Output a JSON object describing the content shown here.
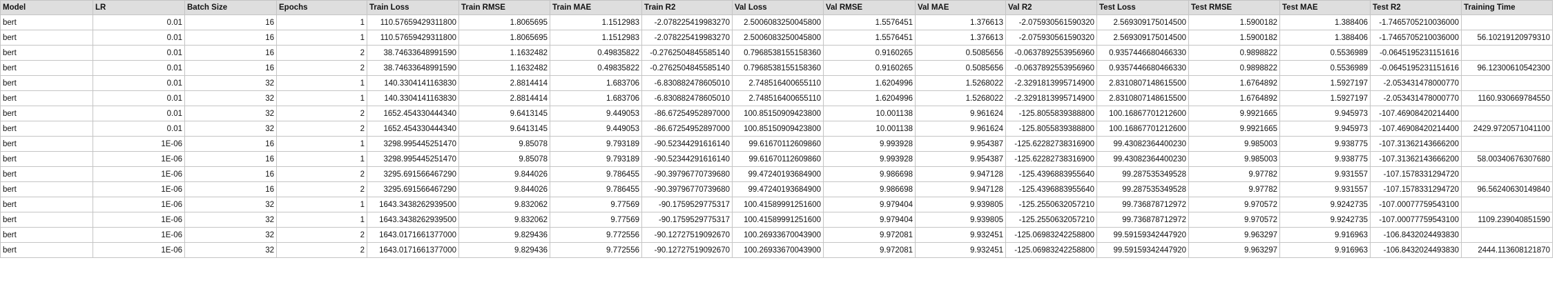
{
  "columns": [
    "Model",
    "LR",
    "Batch Size",
    "Epochs",
    "Train Loss",
    "Train RMSE",
    "Train MAE",
    "Train R2",
    "Val Loss",
    "Val RMSE",
    "Val MAE",
    "Val R2",
    "Test Loss",
    "Test RMSE",
    "Test MAE",
    "Test R2",
    "Training Time"
  ],
  "rows": [
    [
      "bert",
      "0.01",
      "16",
      "1",
      "110.57659429311800",
      "1.8065695",
      "1.1512983",
      "-2.078225419983270",
      "2.5006083250045800",
      "1.5576451",
      "1.376613",
      "-2.075930561590320",
      "2.569309175014500",
      "1.5900182",
      "1.388406",
      "-1.7465705210036000",
      ""
    ],
    [
      "bert",
      "0.01",
      "16",
      "1",
      "110.57659429311800",
      "1.8065695",
      "1.1512983",
      "-2.078225419983270",
      "2.5006083250045800",
      "1.5576451",
      "1.376613",
      "-2.075930561590320",
      "2.569309175014500",
      "1.5900182",
      "1.388406",
      "-1.7465705210036000",
      "56.10219120979310"
    ],
    [
      "bert",
      "0.01",
      "16",
      "2",
      "38.74633648991590",
      "1.1632482",
      "0.49835822",
      "-0.2762504845585140",
      "0.7968538155158360",
      "0.9160265",
      "0.5085656",
      "-0.0637892553956960",
      "0.9357446680466330",
      "0.9898822",
      "0.5536989",
      "-0.0645195231151616",
      ""
    ],
    [
      "bert",
      "0.01",
      "16",
      "2",
      "38.74633648991590",
      "1.1632482",
      "0.49835822",
      "-0.2762504845585140",
      "0.7968538155158360",
      "0.9160265",
      "0.5085656",
      "-0.0637892553956960",
      "0.9357446680466330",
      "0.9898822",
      "0.5536989",
      "-0.0645195231151616",
      "96.12300610542300"
    ],
    [
      "bert",
      "0.01",
      "32",
      "1",
      "140.3304141163830",
      "2.8814414",
      "1.683706",
      "-6.830882478605010",
      "2.748516400655110",
      "1.6204996",
      "1.5268022",
      "-2.3291813995714900",
      "2.8310807148615500",
      "1.6764892",
      "1.5927197",
      "-2.053431478000770",
      ""
    ],
    [
      "bert",
      "0.01",
      "32",
      "1",
      "140.3304141163830",
      "2.8814414",
      "1.683706",
      "-6.830882478605010",
      "2.748516400655110",
      "1.6204996",
      "1.5268022",
      "-2.3291813995714900",
      "2.8310807148615500",
      "1.6764892",
      "1.5927197",
      "-2.053431478000770",
      "1160.930669784550"
    ],
    [
      "bert",
      "0.01",
      "32",
      "2",
      "1652.454330444340",
      "9.6413145",
      "9.449053",
      "-86.67254952897000",
      "100.85150909423800",
      "10.001138",
      "9.961624",
      "-125.8055839388800",
      "100.16867701212600",
      "9.9921665",
      "9.945973",
      "-107.46908420214400",
      ""
    ],
    [
      "bert",
      "0.01",
      "32",
      "2",
      "1652.454330444340",
      "9.6413145",
      "9.449053",
      "-86.67254952897000",
      "100.85150909423800",
      "10.001138",
      "9.961624",
      "-125.8055839388800",
      "100.16867701212600",
      "9.9921665",
      "9.945973",
      "-107.46908420214400",
      "2429.9720571041100"
    ],
    [
      "bert",
      "1E-06",
      "16",
      "1",
      "3298.995445251470",
      "9.85078",
      "9.793189",
      "-90.52344291616140",
      "99.61670112609860",
      "9.993928",
      "9.954387",
      "-125.62282738316900",
      "99.43082364400230",
      "9.985003",
      "9.938775",
      "-107.31362143666200",
      ""
    ],
    [
      "bert",
      "1E-06",
      "16",
      "1",
      "3298.995445251470",
      "9.85078",
      "9.793189",
      "-90.52344291616140",
      "99.61670112609860",
      "9.993928",
      "9.954387",
      "-125.62282738316900",
      "99.43082364400230",
      "9.985003",
      "9.938775",
      "-107.31362143666200",
      "58.00340676307680"
    ],
    [
      "bert",
      "1E-06",
      "16",
      "2",
      "3295.691566467290",
      "9.844026",
      "9.786455",
      "-90.39796770739680",
      "99.47240193684900",
      "9.986698",
      "9.947128",
      "-125.4396883955640",
      "99.287535349528",
      "9.97782",
      "9.931557",
      "-107.1578331294720",
      ""
    ],
    [
      "bert",
      "1E-06",
      "16",
      "2",
      "3295.691566467290",
      "9.844026",
      "9.786455",
      "-90.39796770739680",
      "99.47240193684900",
      "9.986698",
      "9.947128",
      "-125.4396883955640",
      "99.287535349528",
      "9.97782",
      "9.931557",
      "-107.1578331294720",
      "96.56240630149840"
    ],
    [
      "bert",
      "1E-06",
      "32",
      "1",
      "1643.3438262939500",
      "9.832062",
      "9.77569",
      "-90.1759529775317",
      "100.41589991251600",
      "9.979404",
      "9.939805",
      "-125.2550632057210",
      "99.736878712972",
      "9.970572",
      "9.9242735",
      "-107.00077759543100",
      ""
    ],
    [
      "bert",
      "1E-06",
      "32",
      "1",
      "1643.3438262939500",
      "9.832062",
      "9.77569",
      "-90.1759529775317",
      "100.41589991251600",
      "9.979404",
      "9.939805",
      "-125.2550632057210",
      "99.736878712972",
      "9.970572",
      "9.9242735",
      "-107.00077759543100",
      "1109.239040851590"
    ],
    [
      "bert",
      "1E-06",
      "32",
      "2",
      "1643.0171661377000",
      "9.829436",
      "9.772556",
      "-90.12727519092670",
      "100.26933670043900",
      "9.972081",
      "9.932451",
      "-125.06983242258800",
      "99.59159342447920",
      "9.963297",
      "9.916963",
      "-106.8432024493830",
      ""
    ],
    [
      "bert",
      "1E-06",
      "32",
      "2",
      "1643.0171661377000",
      "9.829436",
      "9.772556",
      "-90.12727519092670",
      "100.26933670043900",
      "9.972081",
      "9.932451",
      "-125.06983242258800",
      "99.59159342447920",
      "9.963297",
      "9.916963",
      "-106.8432024493830",
      "2444.113608121870"
    ]
  ]
}
